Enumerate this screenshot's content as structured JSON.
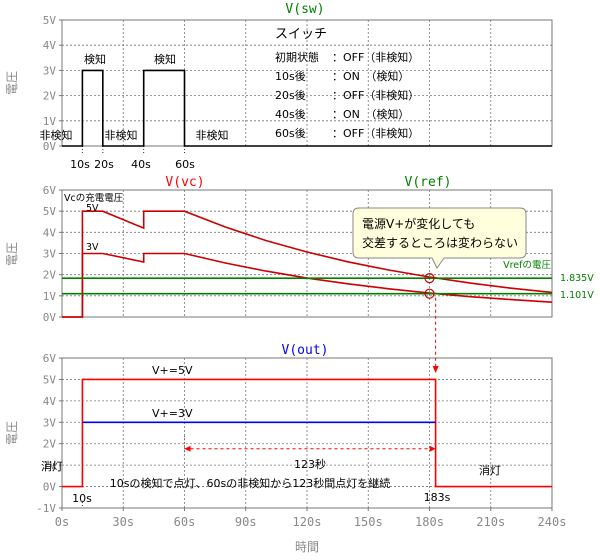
{
  "chart_data": [
    {
      "type": "line",
      "title": "V(sw)",
      "title_color": "#008000",
      "ylabel": "電圧",
      "ylim": [
        0,
        5
      ],
      "yticks": [
        "0V",
        "1V",
        "2V",
        "3V",
        "4V",
        "5V"
      ],
      "xlim": [
        0,
        240
      ],
      "grid": true,
      "series": [
        {
          "color": "#000000",
          "x": [
            0,
            10,
            10,
            20,
            20,
            40,
            40,
            60,
            60,
            240
          ],
          "y": [
            0,
            0,
            3,
            3,
            0,
            0,
            3,
            3,
            0,
            0
          ]
        }
      ],
      "state_labels": [
        "非検知",
        "検知",
        "非検知",
        "検知",
        "非検知"
      ],
      "time_markers": [
        "10s",
        "20s",
        "40s",
        "60s"
      ],
      "legend_box": {
        "title": "スイッチ",
        "rows": [
          {
            "when": "初期状態",
            "state": "：OFF（非検知）"
          },
          {
            "when": "10s後",
            "state": "：ON　（検知）"
          },
          {
            "when": "20s後",
            "state": "：OFF（非検知）"
          },
          {
            "when": "40s後",
            "state": "：ON　（検知）"
          },
          {
            "when": "60s後",
            "state": "：OFF（非検知）"
          }
        ]
      }
    },
    {
      "type": "line",
      "titles": [
        {
          "text": "V(vc)",
          "color": "#ff0000"
        },
        {
          "text": "V(ref)",
          "color": "#008000"
        }
      ],
      "ylabel": "電圧",
      "ylim": [
        0,
        6
      ],
      "yticks": [
        "0V",
        "1V",
        "2V",
        "3V",
        "4V",
        "5V",
        "6V"
      ],
      "xlim": [
        0,
        240
      ],
      "grid": true,
      "series": [
        {
          "name": "5V",
          "color": "#cc0000",
          "x": [
            0,
            10,
            10,
            20,
            40,
            40,
            60,
            80,
            100,
            120,
            140,
            160,
            180,
            200,
            220,
            240
          ],
          "y": [
            0,
            0,
            5,
            5,
            4.2,
            5,
            5,
            4.25,
            3.61,
            3.07,
            2.61,
            2.22,
            1.89,
            1.6,
            1.36,
            1.16
          ]
        },
        {
          "name": "3V",
          "color": "#cc0000",
          "x": [
            0,
            10,
            10,
            20,
            40,
            40,
            60,
            80,
            100,
            120,
            140,
            160,
            180,
            200,
            220,
            240
          ],
          "y": [
            0,
            0,
            3,
            3,
            2.6,
            3,
            3,
            2.55,
            2.17,
            1.84,
            1.57,
            1.33,
            1.13,
            0.96,
            0.82,
            0.7
          ]
        },
        {
          "name": "Vref_high",
          "color": "#008000",
          "x": [
            0,
            240
          ],
          "y": [
            1.835,
            1.835
          ]
        },
        {
          "name": "Vref_low",
          "color": "#008000",
          "x": [
            0,
            240
          ],
          "y": [
            1.101,
            1.101
          ]
        }
      ],
      "annotations": {
        "vc_label": "Vcの充電電圧",
        "label_5v": "5V",
        "label_3v": "3V",
        "vref_label": "Vrefの電圧",
        "vref_high": "1.835V",
        "vref_low": "1.101V",
        "callout_line1": "電源V+が変化しても",
        "callout_line2": "交差するところは変わらない",
        "crossings": [
          {
            "x": 180,
            "y": 1.835
          },
          {
            "x": 180,
            "y": 1.101
          }
        ]
      }
    },
    {
      "type": "line",
      "title": "V(out)",
      "title_color": "#0000ff",
      "ylabel": "電圧",
      "xlabel": "時間",
      "ylim": [
        -1,
        6
      ],
      "yticks": [
        "-1V",
        "0V",
        "1V",
        "2V",
        "3V",
        "4V",
        "5V",
        "6V"
      ],
      "xlim": [
        0,
        240
      ],
      "xticks": [
        "0s",
        "30s",
        "60s",
        "90s",
        "120s",
        "150s",
        "180s",
        "210s",
        "240s"
      ],
      "grid": true,
      "series": [
        {
          "name": "V+=5V",
          "color": "#ff0000",
          "x": [
            0,
            10,
            10,
            183,
            183,
            240
          ],
          "y": [
            0,
            0,
            5,
            5,
            0,
            0
          ]
        },
        {
          "name": "V+=3V",
          "color": "#0000ff",
          "x": [
            10,
            183
          ],
          "y": [
            3,
            3
          ]
        }
      ],
      "annotations": {
        "off_left": "消灯",
        "off_right": "消灯",
        "duration": "123秒",
        "note": "10sの検知で点灯、60sの非検知から123秒間点灯を継続",
        "marker_10s": "10s",
        "marker_183s": "183s"
      }
    }
  ]
}
